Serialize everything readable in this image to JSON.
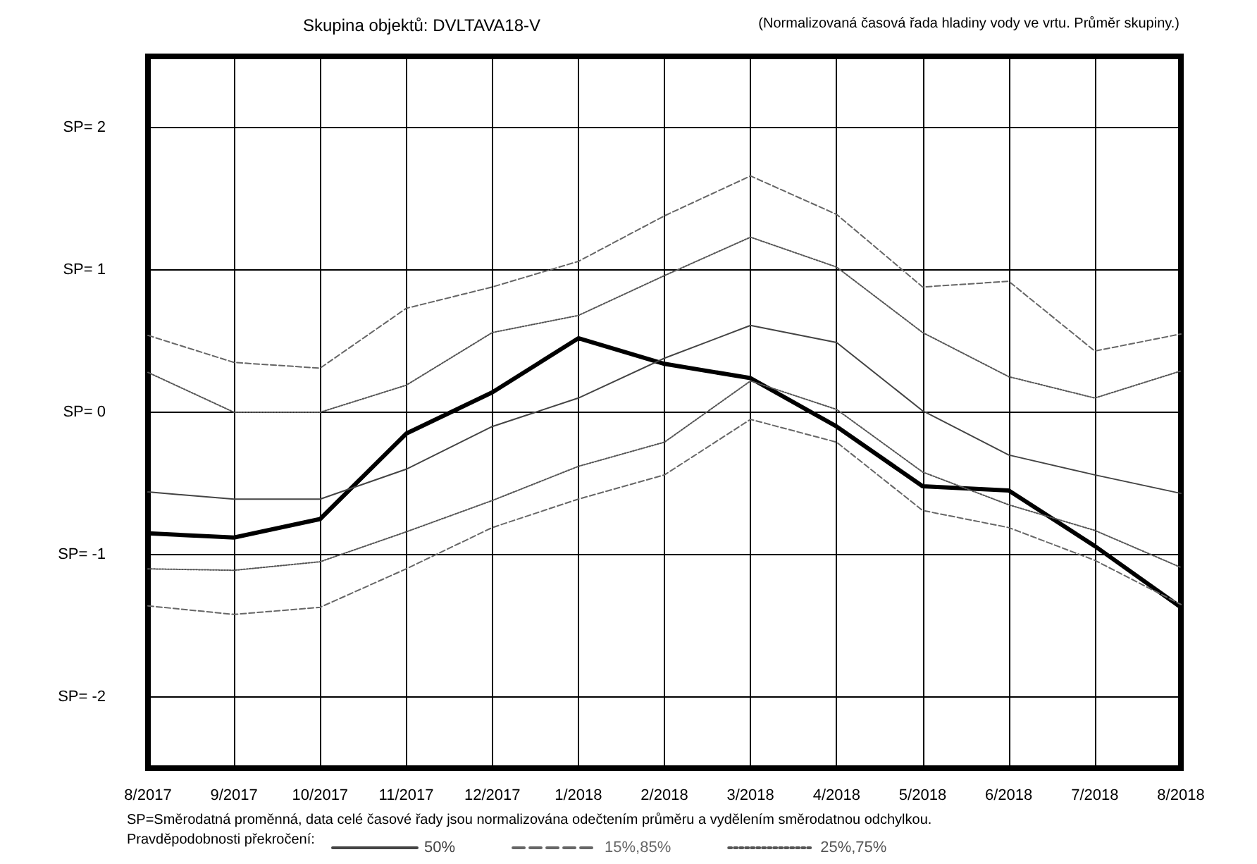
{
  "chart_data": {
    "type": "line",
    "title": "Skupina objektů: DVLTAVA18-V",
    "subtitle": "(Normalizovaná časová řada hladiny vody ve vrtu. Průměr skupiny.)",
    "annotations": [
      "SP=Směrodatná proměnná, data celé časové řady jsou normalizována odečtením průměru a vydělením směrodatnou odchylkou."
    ],
    "categories": [
      "8/2017",
      "9/2017",
      "10/2017",
      "11/2017",
      "12/2017",
      "1/2018",
      "2/2018",
      "3/2018",
      "4/2018",
      "5/2018",
      "6/2018",
      "7/2018",
      "8/2018"
    ],
    "ylim": [
      -2.5,
      2.5
    ],
    "yticks": [
      {
        "value": -2,
        "label": "SP= -2"
      },
      {
        "value": -1,
        "label": "SP= -1"
      },
      {
        "value": 0,
        "label": "SP= 0"
      },
      {
        "value": 1,
        "label": "SP= 1"
      },
      {
        "value": 2,
        "label": "SP= 2"
      }
    ],
    "grid": true,
    "marker": "none",
    "legend": "bottom left",
    "legend_title": "Pravděpodobnosti překročení:",
    "series": [
      {
        "color": "#000000",
        "line_style": "solid",
        "values": [
          -0.85,
          -0.88,
          -0.75,
          -0.15,
          0.14,
          0.52,
          0.34,
          0.24,
          -0.1,
          -0.52,
          -0.55,
          -0.94,
          -1.37
        ]
      },
      {
        "name": "50%",
        "color": "#444444",
        "line_style": "solid",
        "values": [
          -0.56,
          -0.61,
          -0.61,
          -0.4,
          -0.1,
          0.1,
          0.38,
          0.61,
          0.49,
          0.01,
          -0.3,
          -0.44,
          -0.57
        ]
      },
      {
        "name": "15%,85%",
        "color": "#666666",
        "line_style": "dashed",
        "values": [
          0.54,
          0.35,
          0.31,
          0.73,
          0.88,
          1.06,
          1.38,
          1.66,
          1.39,
          0.88,
          0.92,
          0.43,
          0.55
        ]
      },
      {
        "color": "#666666",
        "line_style": "dashed",
        "values": [
          -1.36,
          -1.42,
          -1.37,
          -1.1,
          -0.81,
          -0.61,
          -0.44,
          -0.05,
          -0.21,
          -0.69,
          -0.81,
          -1.04,
          -1.35
        ]
      },
      {
        "name": "25%,75%",
        "color": "#555555",
        "line_style": "dotted",
        "values": [
          0.28,
          0,
          0,
          0.19,
          0.56,
          0.68,
          0.96,
          1.23,
          1.02,
          0.56,
          0.25,
          0.1,
          0.29
        ]
      },
      {
        "color": "#555555",
        "line_style": "dotted",
        "values": [
          -1.1,
          -1.11,
          -1.05,
          -0.84,
          -0.62,
          -0.38,
          -0.21,
          0.22,
          0.02,
          -0.42,
          -0.65,
          -0.83,
          -1.09
        ]
      }
    ]
  }
}
